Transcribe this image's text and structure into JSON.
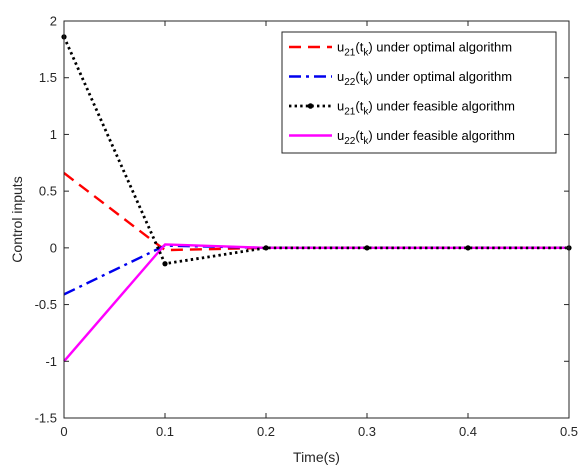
{
  "chart_data": {
    "type": "line",
    "xlabel": "Time(s)",
    "ylabel": "Control inputs",
    "xlim": [
      0,
      0.5
    ],
    "ylim": [
      -1.5,
      2
    ],
    "xticks": [
      0,
      0.1,
      0.2,
      0.3,
      0.4,
      0.5
    ],
    "xtick_labels": [
      "0",
      "0.1",
      "0.2",
      "0.3",
      "0.4",
      "0.5"
    ],
    "yticks": [
      -1.5,
      -1,
      -0.5,
      0,
      0.5,
      1,
      1.5,
      2
    ],
    "ytick_labels": [
      "-1.5",
      "-1",
      "-0.5",
      "0",
      "0.5",
      "1",
      "1.5",
      "2"
    ],
    "grid": false,
    "legend_position": "top-right",
    "x": [
      0,
      0.1,
      0.2,
      0.3,
      0.4,
      0.5
    ],
    "series": [
      {
        "name_main": "u",
        "name_sub1": "21",
        "name_mid": "(t",
        "name_sub2": "k",
        "name_tail": ") under optimal algorithm",
        "values": [
          0.66,
          -0.02,
          0,
          0,
          0,
          0
        ],
        "color": "#ff0000",
        "style": "dashed"
      },
      {
        "name_main": "u",
        "name_sub1": "22",
        "name_mid": "(t",
        "name_sub2": "k",
        "name_tail": ") under optimal algorithm",
        "values": [
          -0.41,
          0.02,
          0,
          0,
          0,
          0
        ],
        "color": "#0000ee",
        "style": "dashdot"
      },
      {
        "name_main": "u",
        "name_sub1": "21",
        "name_mid": "(t",
        "name_sub2": "k",
        "name_tail": ") under feasible algorithm",
        "values": [
          1.86,
          -0.14,
          0,
          0,
          0,
          0
        ],
        "color": "#000000",
        "style": "dotted-marker"
      },
      {
        "name_main": "u",
        "name_sub1": "22",
        "name_mid": "(t",
        "name_sub2": "k",
        "name_tail": ") under feasible algorithm",
        "values": [
          -1.0,
          0.03,
          0,
          0,
          0,
          0
        ],
        "color": "#ff00ff",
        "style": "solid"
      }
    ]
  }
}
